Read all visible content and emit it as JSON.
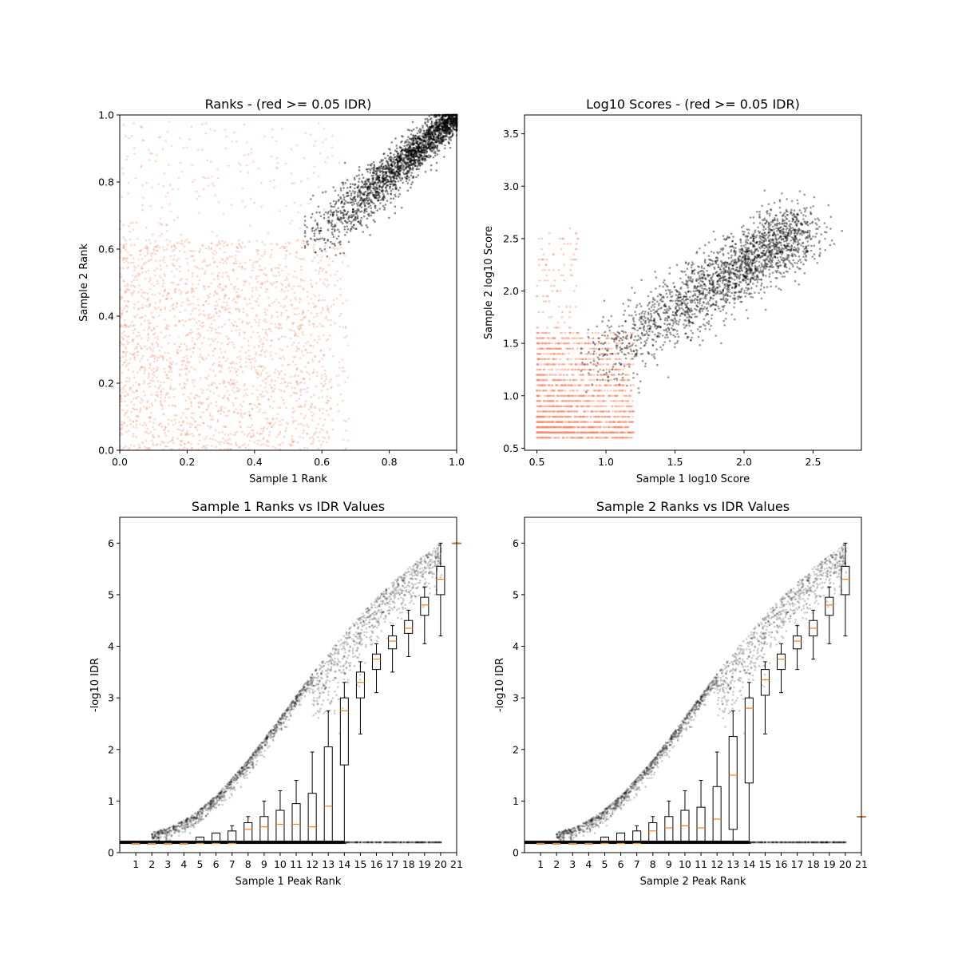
{
  "chart_data": [
    {
      "type": "scatter",
      "title": "Ranks - (red >= 0.05 IDR)",
      "xlabel": "Sample 1 Rank",
      "ylabel": "Sample 2 Rank",
      "xlim": [
        0,
        1
      ],
      "ylim": [
        0,
        1
      ],
      "xticks": [
        "0.0",
        "0.2",
        "0.4",
        "0.6",
        "0.8",
        "1.0"
      ],
      "yticks": [
        "0.0",
        "0.2",
        "0.4",
        "0.6",
        "0.8",
        "1.0"
      ],
      "grid": false,
      "series": [
        {
          "color": "#fa8c6e",
          "region": {
            "x": [
              0.0,
              0.68
            ],
            "y": [
              0.0,
              0.63
            ]
          }
        },
        {
          "color": "#000000",
          "region": {
            "x_start": 0.55,
            "y_start": 0.55,
            "x_end": 1.0,
            "y_end": 1.0
          }
        }
      ]
    },
    {
      "type": "scatter",
      "title": "Log10 Scores - (red >= 0.05 IDR)",
      "xlabel": "Sample 1 log10 Score",
      "ylabel": "Sample 2 log10 Score",
      "xlim": [
        0.41,
        2.85
      ],
      "ylim": [
        0.48,
        3.68
      ],
      "xticks": [
        "0.5",
        "1.0",
        "1.5",
        "2.0",
        "2.5"
      ],
      "yticks": [
        "0.5",
        "1.0",
        "1.5",
        "2.0",
        "2.5",
        "3.0",
        "3.5"
      ],
      "grid": false,
      "series": [
        {
          "color": "#fa8c6e",
          "region": {
            "x": [
              0.5,
              1.2
            ],
            "y": [
              0.62,
              1.6
            ]
          }
        },
        {
          "color": "#000000",
          "region": {
            "x_start": 0.82,
            "y_start": 1.05,
            "x_end": 2.6,
            "y_end": 2.95
          }
        }
      ]
    },
    {
      "type": "scatter",
      "title": "Sample 1 Ranks vs IDR Values",
      "xlabel": "Sample 1 Peak Rank",
      "ylabel": "-log10 IDR",
      "xlim": [
        0,
        21
      ],
      "ylim": [
        0,
        6.5
      ],
      "xticks": [
        "1",
        "2",
        "3",
        "4",
        "5",
        "6",
        "7",
        "8",
        "9",
        "10",
        "11",
        "12",
        "13",
        "14",
        "15",
        "16",
        "17",
        "18",
        "19",
        "20",
        "21"
      ],
      "yticks": [
        "0",
        "1",
        "2",
        "3",
        "4",
        "5",
        "6"
      ],
      "grid": false,
      "boxes": [
        {
          "x": 1,
          "q1": 0.18,
          "med": 0.18,
          "q3": 0.18,
          "lo": 0.18,
          "hi": 0.18
        },
        {
          "x": 2,
          "q1": 0.18,
          "med": 0.18,
          "q3": 0.18,
          "lo": 0.18,
          "hi": 0.18
        },
        {
          "x": 3,
          "q1": 0.18,
          "med": 0.18,
          "q3": 0.18,
          "lo": 0.18,
          "hi": 0.18
        },
        {
          "x": 4,
          "q1": 0.18,
          "med": 0.18,
          "q3": 0.18,
          "lo": 0.18,
          "hi": 0.18
        },
        {
          "x": 5,
          "q1": 0.18,
          "med": 0.18,
          "q3": 0.3,
          "lo": 0.18,
          "hi": 0.3
        },
        {
          "x": 6,
          "q1": 0.18,
          "med": 0.18,
          "q3": 0.38,
          "lo": 0.18,
          "hi": 0.38
        },
        {
          "x": 7,
          "q1": 0.18,
          "med": 0.18,
          "q3": 0.42,
          "lo": 0.18,
          "hi": 0.52
        },
        {
          "x": 8,
          "q1": 0.18,
          "med": 0.45,
          "q3": 0.58,
          "lo": 0.18,
          "hi": 0.7
        },
        {
          "x": 9,
          "q1": 0.18,
          "med": 0.5,
          "q3": 0.7,
          "lo": 0.18,
          "hi": 1.0
        },
        {
          "x": 10,
          "q1": 0.18,
          "med": 0.55,
          "q3": 0.82,
          "lo": 0.18,
          "hi": 1.2
        },
        {
          "x": 11,
          "q1": 0.18,
          "med": 0.55,
          "q3": 0.95,
          "lo": 0.18,
          "hi": 1.4
        },
        {
          "x": 12,
          "q1": 0.18,
          "med": 0.5,
          "q3": 1.15,
          "lo": 0.18,
          "hi": 1.95
        },
        {
          "x": 13,
          "q1": 0.18,
          "med": 0.9,
          "q3": 2.05,
          "lo": 0.18,
          "hi": 2.75
        },
        {
          "x": 14,
          "q1": 1.7,
          "med": 2.75,
          "q3": 3.0,
          "lo": 0.18,
          "hi": 3.3
        },
        {
          "x": 15,
          "q1": 3.0,
          "med": 3.3,
          "q3": 3.5,
          "lo": 2.3,
          "hi": 3.7
        },
        {
          "x": 16,
          "q1": 3.55,
          "med": 3.75,
          "q3": 3.85,
          "lo": 3.1,
          "hi": 4.05
        },
        {
          "x": 17,
          "q1": 3.95,
          "med": 4.1,
          "q3": 4.2,
          "lo": 3.5,
          "hi": 4.4
        },
        {
          "x": 18,
          "q1": 4.25,
          "med": 4.35,
          "q3": 4.5,
          "lo": 3.8,
          "hi": 4.7
        },
        {
          "x": 19,
          "q1": 4.6,
          "med": 4.8,
          "q3": 4.95,
          "lo": 4.05,
          "hi": 5.15
        },
        {
          "x": 20,
          "q1": 5.0,
          "med": 5.3,
          "q3": 5.55,
          "lo": 4.2,
          "hi": 6.0
        },
        {
          "x": 21,
          "q1": 6.0,
          "med": 6.0,
          "q3": 6.0,
          "lo": 6.0,
          "hi": 6.0
        }
      ]
    },
    {
      "type": "scatter",
      "title": "Sample 2 Ranks vs IDR Values",
      "xlabel": "Sample 2 Peak Rank",
      "ylabel": "-log10 IDR",
      "xlim": [
        0,
        21
      ],
      "ylim": [
        0,
        6.5
      ],
      "xticks": [
        "1",
        "2",
        "3",
        "4",
        "5",
        "6",
        "7",
        "8",
        "9",
        "10",
        "11",
        "12",
        "13",
        "14",
        "15",
        "16",
        "17",
        "18",
        "19",
        "20",
        "21"
      ],
      "yticks": [
        "0",
        "1",
        "2",
        "3",
        "4",
        "5",
        "6"
      ],
      "grid": false,
      "boxes": [
        {
          "x": 1,
          "q1": 0.18,
          "med": 0.18,
          "q3": 0.18,
          "lo": 0.18,
          "hi": 0.18
        },
        {
          "x": 2,
          "q1": 0.18,
          "med": 0.18,
          "q3": 0.18,
          "lo": 0.18,
          "hi": 0.18
        },
        {
          "x": 3,
          "q1": 0.18,
          "med": 0.18,
          "q3": 0.18,
          "lo": 0.18,
          "hi": 0.18
        },
        {
          "x": 4,
          "q1": 0.18,
          "med": 0.18,
          "q3": 0.18,
          "lo": 0.18,
          "hi": 0.18
        },
        {
          "x": 5,
          "q1": 0.18,
          "med": 0.18,
          "q3": 0.3,
          "lo": 0.18,
          "hi": 0.3
        },
        {
          "x": 6,
          "q1": 0.18,
          "med": 0.18,
          "q3": 0.38,
          "lo": 0.18,
          "hi": 0.38
        },
        {
          "x": 7,
          "q1": 0.18,
          "med": 0.18,
          "q3": 0.42,
          "lo": 0.18,
          "hi": 0.52
        },
        {
          "x": 8,
          "q1": 0.18,
          "med": 0.42,
          "q3": 0.58,
          "lo": 0.18,
          "hi": 0.7
        },
        {
          "x": 9,
          "q1": 0.18,
          "med": 0.48,
          "q3": 0.7,
          "lo": 0.18,
          "hi": 1.0
        },
        {
          "x": 10,
          "q1": 0.18,
          "med": 0.52,
          "q3": 0.82,
          "lo": 0.18,
          "hi": 1.2
        },
        {
          "x": 11,
          "q1": 0.18,
          "med": 0.48,
          "q3": 0.88,
          "lo": 0.18,
          "hi": 1.4
        },
        {
          "x": 12,
          "q1": 0.18,
          "med": 0.65,
          "q3": 1.28,
          "lo": 0.18,
          "hi": 1.95
        },
        {
          "x": 13,
          "q1": 0.45,
          "med": 1.5,
          "q3": 2.25,
          "lo": 0.18,
          "hi": 2.75
        },
        {
          "x": 14,
          "q1": 1.35,
          "med": 2.8,
          "q3": 3.0,
          "lo": 0.18,
          "hi": 3.3
        },
        {
          "x": 15,
          "q1": 3.05,
          "med": 3.35,
          "q3": 3.55,
          "lo": 2.3,
          "hi": 3.7
        },
        {
          "x": 16,
          "q1": 3.55,
          "med": 3.75,
          "q3": 3.85,
          "lo": 3.1,
          "hi": 4.05
        },
        {
          "x": 17,
          "q1": 3.95,
          "med": 4.1,
          "q3": 4.2,
          "lo": 3.55,
          "hi": 4.4
        },
        {
          "x": 18,
          "q1": 4.2,
          "med": 4.35,
          "q3": 4.5,
          "lo": 3.75,
          "hi": 4.7
        },
        {
          "x": 19,
          "q1": 4.6,
          "med": 4.8,
          "q3": 4.95,
          "lo": 4.05,
          "hi": 5.15
        },
        {
          "x": 20,
          "q1": 5.0,
          "med": 5.3,
          "q3": 5.55,
          "lo": 4.2,
          "hi": 6.0
        },
        {
          "x": 21,
          "q1": 0.7,
          "med": 0.7,
          "q3": 0.7,
          "lo": 0.7,
          "hi": 0.7
        }
      ]
    }
  ]
}
